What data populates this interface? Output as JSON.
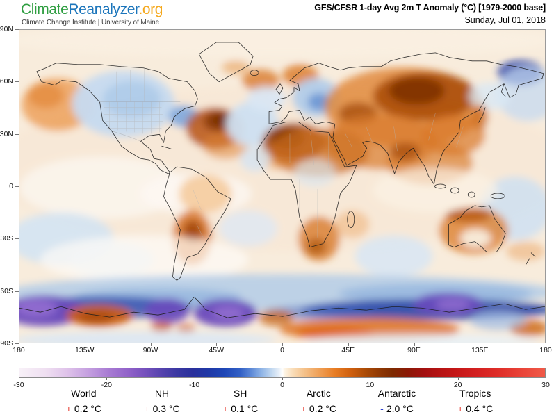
{
  "header": {
    "logo_climate": "Climate",
    "logo_reanalyzer": "Reanalyzer",
    "logo_org": ".org",
    "subtitle": "Climate Change Institute | University of Maine"
  },
  "title": {
    "line1": "GFS/CFSR 1-day Avg 2m T Anomaly (°C) [1979-2000 base]",
    "line2": "Sunday, Jul 01, 2018"
  },
  "map": {
    "lat_labels": [
      "90N",
      "60N",
      "30N",
      "0",
      "30S",
      "60S",
      "90S"
    ],
    "lon_labels": [
      "180",
      "135W",
      "90W",
      "45W",
      "0",
      "45E",
      "90E",
      "135E",
      "180"
    ]
  },
  "colorbar": {
    "min": -30,
    "max": 30,
    "tick_labels": [
      "-30",
      "-20",
      "-10",
      "0",
      "10",
      "20",
      "30"
    ],
    "stops": [
      {
        "p": 0,
        "c": "#f8f1f8"
      },
      {
        "p": 5,
        "c": "#efdff1"
      },
      {
        "p": 9,
        "c": "#dfc3ea"
      },
      {
        "p": 13,
        "c": "#c5a0e0"
      },
      {
        "p": 17,
        "c": "#a87bd3"
      },
      {
        "p": 21,
        "c": "#8f60c8"
      },
      {
        "p": 24,
        "c": "#7450bc"
      },
      {
        "p": 27,
        "c": "#5643ae"
      },
      {
        "p": 30,
        "c": "#3b38a2"
      },
      {
        "p": 33,
        "c": "#2a309c"
      },
      {
        "p": 36,
        "c": "#1f38a6"
      },
      {
        "p": 39,
        "c": "#1e46b6"
      },
      {
        "p": 42,
        "c": "#3260c6"
      },
      {
        "p": 44,
        "c": "#5b87d6"
      },
      {
        "p": 46,
        "c": "#8db3e6"
      },
      {
        "p": 48,
        "c": "#c2d8f0"
      },
      {
        "p": 49.5,
        "c": "#eaf1f9"
      },
      {
        "p": 50,
        "c": "#ffffff"
      },
      {
        "p": 50.5,
        "c": "#fdf3e3"
      },
      {
        "p": 52,
        "c": "#f9ddb9"
      },
      {
        "p": 54,
        "c": "#f5c48e"
      },
      {
        "p": 57,
        "c": "#efa057"
      },
      {
        "p": 60,
        "c": "#e87d24"
      },
      {
        "p": 63,
        "c": "#cf5f0e"
      },
      {
        "p": 66,
        "c": "#a94a06"
      },
      {
        "p": 69,
        "c": "#8b3503"
      },
      {
        "p": 71,
        "c": "#7d2a01"
      },
      {
        "p": 74,
        "c": "#8c1806"
      },
      {
        "p": 77,
        "c": "#a31010"
      },
      {
        "p": 80,
        "c": "#b51313"
      },
      {
        "p": 83,
        "c": "#c41717"
      },
      {
        "p": 87,
        "c": "#d32020"
      },
      {
        "p": 91,
        "c": "#de2d28"
      },
      {
        "p": 95,
        "c": "#e84136"
      },
      {
        "p": 100,
        "c": "#f05a48"
      }
    ]
  },
  "stats": [
    {
      "label": "World",
      "sign": "+",
      "value": "0.2 °C"
    },
    {
      "label": "NH",
      "sign": "+",
      "value": "0.3 °C"
    },
    {
      "label": "SH",
      "sign": "+",
      "value": "0.1 °C"
    },
    {
      "label": "Arctic",
      "sign": "+",
      "value": "0.2 °C"
    },
    {
      "label": "Antarctic",
      "sign": "-",
      "value": "2.0 °C"
    },
    {
      "label": "Tropics",
      "sign": "+",
      "value": "0.4 °C"
    }
  ],
  "colors": {
    "logo_climate": "#2f9e41",
    "logo_reanalyzer": "#1b75bb",
    "logo_org": "#f5a81c",
    "positive_sign": "#e5352b",
    "negative_sign": "#2b3fd0"
  }
}
